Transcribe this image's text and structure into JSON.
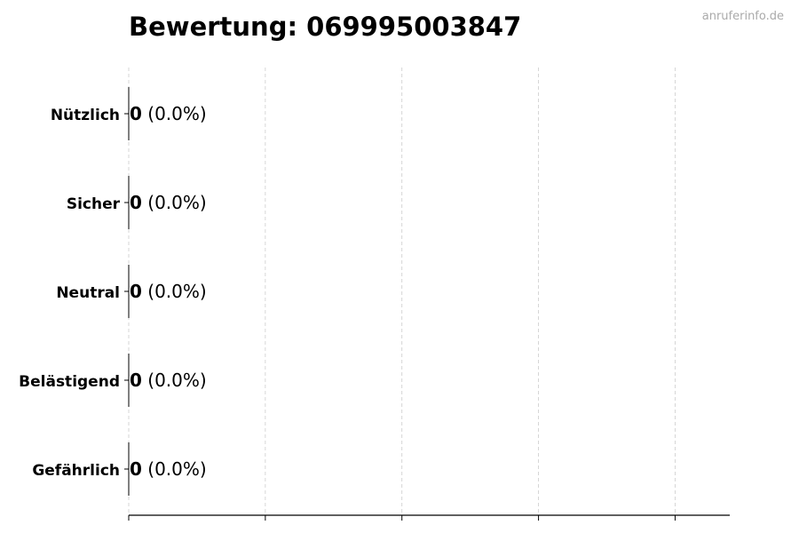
{
  "watermark": "anruferinfo.de",
  "chart_data": {
    "type": "bar",
    "orientation": "horizontal",
    "title": "Bewertung: 069995003847",
    "xlabel": "",
    "ylabel": "",
    "categories": [
      "Nützlich",
      "Sicher",
      "Neutral",
      "Belästigend",
      "Gefährlich"
    ],
    "values": [
      0,
      0,
      0,
      0,
      0
    ],
    "labels": [
      {
        "count": "0",
        "percent": "(0.0%)"
      },
      {
        "count": "0",
        "percent": "(0.0%)"
      },
      {
        "count": "0",
        "percent": "(0.0%)"
      },
      {
        "count": "0",
        "percent": "(0.0%)"
      },
      {
        "count": "0",
        "percent": "(0.0%)"
      }
    ],
    "xlim": [
      0,
      4.4
    ],
    "xticks": [
      0,
      1,
      2,
      3,
      4
    ],
    "xtick_labels_shown": false,
    "grid": "vertical dashed",
    "bar_color": "#000000",
    "grid_color": "#cccccc",
    "watermark_color": "#aaaaaa"
  }
}
